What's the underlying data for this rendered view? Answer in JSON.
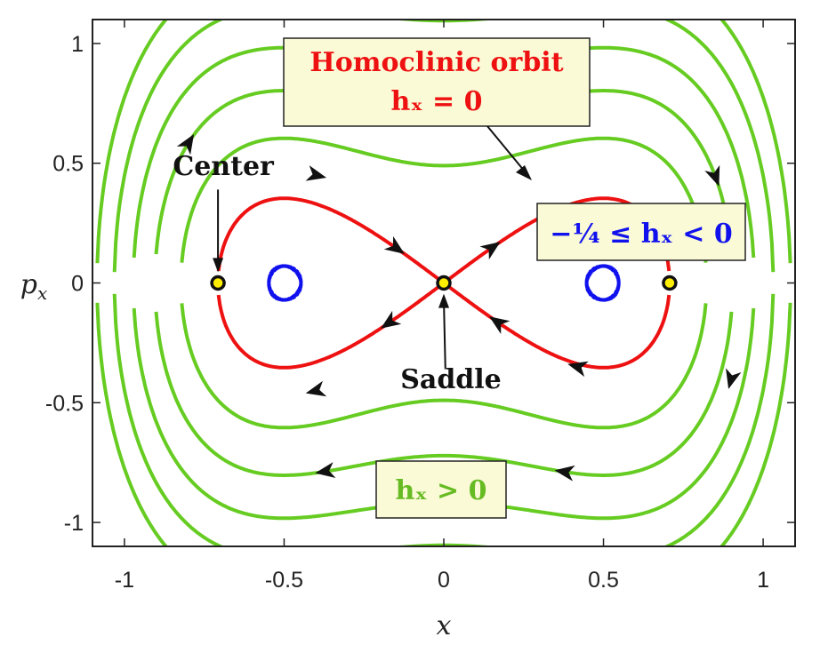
{
  "chart_data": {
    "type": "line",
    "title": "",
    "xlabel": "x",
    "ylabel": "p_x",
    "xlim": [
      -1.1,
      1.1
    ],
    "ylim": [
      -1.1,
      1.1
    ],
    "x_ticks": [
      "-1",
      "-0.5",
      "0",
      "0.5",
      "1"
    ],
    "y_ticks": [
      "1",
      "0.5",
      "0",
      "-0.5",
      "-1"
    ],
    "grid": false,
    "series": [
      {
        "name": "Homoclinic orbit",
        "group": "homoclinic",
        "color": "#ee1111",
        "levels": [
          0
        ]
      },
      {
        "group": "bounded",
        "color": "#1111ee",
        "levels": [
          -0.06,
          -0.16
        ]
      },
      {
        "group": "unbounded",
        "color": "#66cc22",
        "levels": [
          0.12,
          0.26,
          0.42,
          0.6,
          0.8
        ]
      }
    ],
    "equilibria": [
      {
        "x": -0.7071,
        "y": 0,
        "label": "Center"
      },
      {
        "x": 0,
        "y": 0,
        "label": "Saddle"
      },
      {
        "x": 0.7071,
        "y": 0,
        "label": ""
      }
    ],
    "annotations": [
      {
        "id": "homoclinic",
        "line1": "Homoclinic orbit",
        "line2": "hₓ = 0",
        "color": "#ee1111"
      },
      {
        "id": "bounded",
        "text": "−¼ ≤ hₓ < 0",
        "color": "#1111ee"
      },
      {
        "id": "unbounded",
        "text": "hₓ > 0",
        "color": "#66bb22"
      }
    ],
    "colors": {
      "box_bg": "#fafad6",
      "equilibrium_fill": "#ffee00"
    }
  }
}
